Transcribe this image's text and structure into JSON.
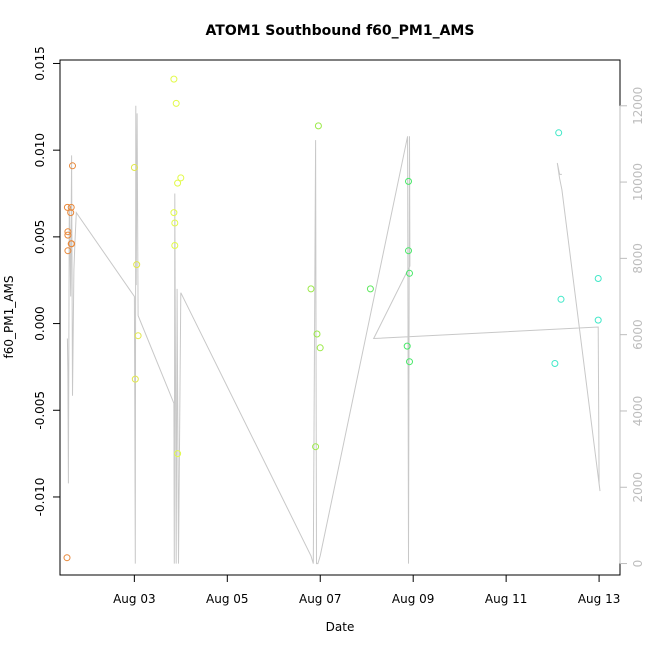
{
  "chart_data": {
    "type": "scatter",
    "title": "ATOM1 Southbound f60_PM1_AMS",
    "xlabel": "Date",
    "ylabel": "f60_PM1_AMS",
    "x_ticks": [
      "Aug 03",
      "Aug 05",
      "Aug 07",
      "Aug 09",
      "Aug 11",
      "Aug 13"
    ],
    "x_tick_values": [
      3,
      5,
      7,
      9,
      11,
      13
    ],
    "xlim": [
      1.4,
      13.45
    ],
    "y_ticks": [
      "-0.010",
      "-0.005",
      "0.000",
      "0.005",
      "0.010",
      "0.015"
    ],
    "y_tick_values": [
      -0.01,
      -0.005,
      0.0,
      0.005,
      0.01,
      0.015
    ],
    "ylim": [
      -0.0145,
      0.0152
    ],
    "y2_ticks": [
      "0",
      "2000",
      "4000",
      "6000",
      "8000",
      "10000",
      "12000"
    ],
    "y2_tick_values": [
      0,
      2000,
      4000,
      6000,
      8000,
      10000,
      12000
    ],
    "y2lim": [
      -300,
      13200
    ],
    "grid": false,
    "points": [
      {
        "x": 1.55,
        "y": -0.0135,
        "color": "#E8883A"
      },
      {
        "x": 1.56,
        "y": 0.0067,
        "color": "#E8883A"
      },
      {
        "x": 1.57,
        "y": 0.0053,
        "color": "#E8883A"
      },
      {
        "x": 1.57,
        "y": 0.0051,
        "color": "#E8883A"
      },
      {
        "x": 1.57,
        "y": 0.0042,
        "color": "#E8883A"
      },
      {
        "x": 1.63,
        "y": 0.0064,
        "color": "#E8883A"
      },
      {
        "x": 1.64,
        "y": 0.0067,
        "color": "#E8883A"
      },
      {
        "x": 1.64,
        "y": 0.0046,
        "color": "#E8883A"
      },
      {
        "x": 1.65,
        "y": 0.0046,
        "color": "#E8883A"
      },
      {
        "x": 1.67,
        "y": 0.0091,
        "color": "#E8883A"
      },
      {
        "x": 3.0,
        "y": 0.009,
        "color": "#E2E84A"
      },
      {
        "x": 3.02,
        "y": -0.0032,
        "color": "#E2E84A"
      },
      {
        "x": 3.05,
        "y": 0.0034,
        "color": "#E2E84A"
      },
      {
        "x": 3.08,
        "y": -0.0007,
        "color": "#E2E84A"
      },
      {
        "x": 3.85,
        "y": 0.0141,
        "color": "#E2FA4A"
      },
      {
        "x": 3.85,
        "y": 0.0064,
        "color": "#E2FA4A"
      },
      {
        "x": 3.87,
        "y": 0.0058,
        "color": "#E2FA4A"
      },
      {
        "x": 3.87,
        "y": 0.0045,
        "color": "#E2FA4A"
      },
      {
        "x": 3.9,
        "y": 0.0127,
        "color": "#E2FA4A"
      },
      {
        "x": 3.93,
        "y": 0.0081,
        "color": "#E2FA4A"
      },
      {
        "x": 3.93,
        "y": -0.0075,
        "color": "#E2FA4A"
      },
      {
        "x": 4.0,
        "y": 0.0084,
        "color": "#E2FA4A"
      },
      {
        "x": 6.8,
        "y": 0.002,
        "color": "#9CEA4A"
      },
      {
        "x": 6.9,
        "y": -0.0071,
        "color": "#9CEA4A"
      },
      {
        "x": 6.93,
        "y": -0.0006,
        "color": "#9CEA4A"
      },
      {
        "x": 6.96,
        "y": 0.0114,
        "color": "#9CEA4A"
      },
      {
        "x": 7.0,
        "y": -0.0014,
        "color": "#9CEA4A"
      },
      {
        "x": 8.08,
        "y": 0.002,
        "color": "#5EE85E"
      },
      {
        "x": 8.87,
        "y": -0.0013,
        "color": "#48E868"
      },
      {
        "x": 8.9,
        "y": 0.0082,
        "color": "#48E868"
      },
      {
        "x": 8.9,
        "y": 0.0042,
        "color": "#48E868"
      },
      {
        "x": 8.92,
        "y": 0.0029,
        "color": "#48E868"
      },
      {
        "x": 8.92,
        "y": -0.0022,
        "color": "#48E868"
      },
      {
        "x": 12.05,
        "y": -0.0023,
        "color": "#40E8C8"
      },
      {
        "x": 12.13,
        "y": 0.011,
        "color": "#40E8C8"
      },
      {
        "x": 12.18,
        "y": 0.0014,
        "color": "#40E8C8"
      },
      {
        "x": 12.98,
        "y": 0.0026,
        "color": "#40E8C8"
      },
      {
        "x": 12.98,
        "y": 0.0002,
        "color": "#40E8C8"
      }
    ],
    "secondary_line": {
      "color": "#c8c8c8",
      "axis": "right",
      "x": [
        1.56,
        1.57,
        1.58,
        1.6,
        1.63,
        1.65,
        1.67,
        1.7,
        1.72,
        1.75,
        3.0,
        3.02,
        3.03,
        3.04,
        3.06,
        3.08,
        3.85,
        3.86,
        3.87,
        3.9,
        3.92,
        3.95,
        4.0,
        6.8,
        6.85,
        6.9,
        6.92,
        6.95,
        7.0,
        8.88,
        8.9,
        8.92,
        8.93,
        8.15,
        12.98,
        13.0,
        13.02,
        12.2,
        12.15,
        12.1,
        12.15,
        12.2
      ],
      "y": [
        5900,
        5000,
        2100,
        9400,
        7000,
        10700,
        4400,
        7700,
        8400,
        9200,
        7000,
        0,
        12000,
        7300,
        11800,
        6500,
        4200,
        0,
        9700,
        0,
        7200,
        0,
        7100,
        200,
        0,
        11100,
        0,
        0,
        200,
        11200,
        0,
        11200,
        7800,
        5900,
        6200,
        2100,
        1900,
        9800,
        10100,
        10500,
        10200,
        10200
      ]
    }
  },
  "colors": {
    "axis": "#000000",
    "secondary_axis": "#bdbdbd",
    "background": "#ffffff"
  }
}
